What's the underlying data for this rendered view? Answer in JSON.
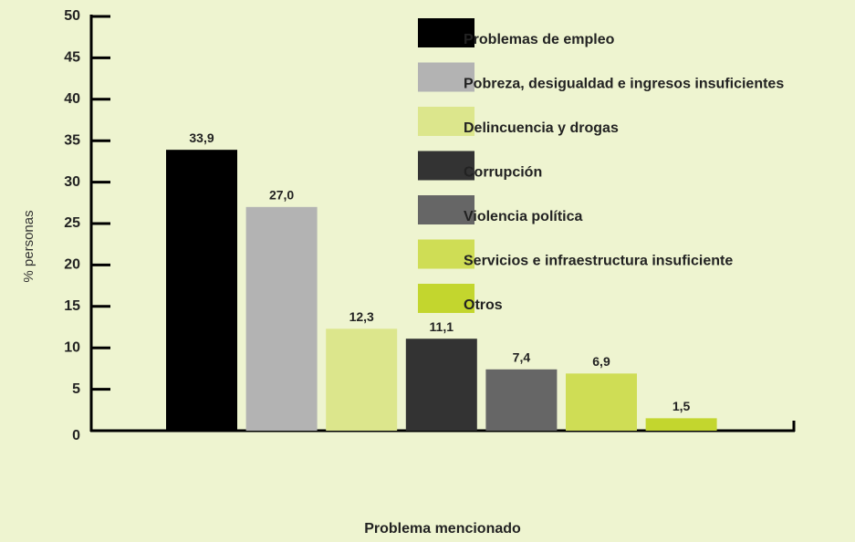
{
  "chart_data": {
    "type": "bar",
    "categories": [
      "Problemas de empleo",
      "Pobreza, desigualdad e ingresos insuficientes",
      "Delincuencia y drogas",
      "Corrupción",
      "Violencia política",
      "Servicios e infraestructura insuficiente",
      "Otros"
    ],
    "values": [
      33.9,
      27.0,
      12.3,
      11.1,
      7.4,
      6.9,
      1.5
    ],
    "value_labels": [
      "33,9",
      "27,0",
      "12,3",
      "11,1",
      "7,4",
      "6,9",
      "1,5"
    ],
    "colors": [
      "#000000",
      "#b3b3b3",
      "#dce68c",
      "#333333",
      "#666666",
      "#cfdd55",
      "#c3d62e"
    ],
    "ylabel": "% personas",
    "xlabel": "Problema mencionado",
    "ylim": [
      0,
      50
    ],
    "yticks": [
      0,
      5,
      10,
      15,
      20,
      25,
      30,
      35,
      40,
      45,
      50
    ],
    "legend": "top-right"
  }
}
